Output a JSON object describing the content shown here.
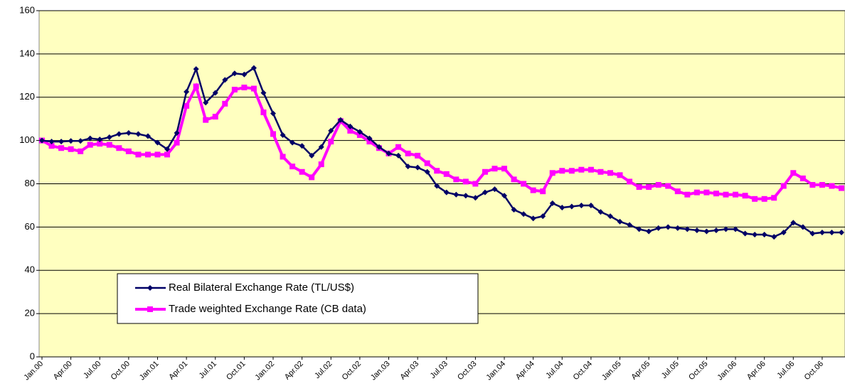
{
  "chart_data": {
    "type": "line",
    "categories": [
      "Jan.00",
      null,
      null,
      "Apr.00",
      null,
      null,
      "Jul.00",
      null,
      null,
      "Oct.00",
      null,
      null,
      "Jan.01",
      null,
      null,
      "Apr.01",
      null,
      null,
      "Jul.01",
      null,
      null,
      "Oct.01",
      null,
      null,
      "Jan.02",
      null,
      null,
      "Apr.02",
      null,
      null,
      "Jul.02",
      null,
      null,
      "Oct.02",
      null,
      null,
      "Jan.03",
      null,
      null,
      "Apr.03",
      null,
      null,
      "Jul.03",
      null,
      null,
      "Oct.03",
      null,
      null,
      "Jan.04",
      null,
      null,
      "Apr.04",
      null,
      null,
      "Jul.04",
      null,
      null,
      "Oct.04",
      null,
      null,
      "Jan.05",
      null,
      null,
      "Apr.05",
      null,
      null,
      "Jul.05",
      null,
      null,
      "Oct.05",
      null,
      null,
      "Jan.06",
      null,
      null,
      "Apr.06",
      null,
      null,
      "Jul.06",
      null,
      null,
      "Oct.06",
      null,
      null
    ],
    "series": [
      {
        "name": "Real Bilateral Exchange Rate (TL/US$)",
        "color": "#000066",
        "marker": "diamond",
        "values": [
          100,
          99.5,
          99.5,
          99.8,
          99.8,
          101,
          100.5,
          101.5,
          103,
          103.5,
          103,
          102,
          99,
          96,
          103.5,
          122.5,
          133,
          117.5,
          122,
          128,
          131,
          130.5,
          133.5,
          122,
          112.5,
          102.5,
          99,
          97.5,
          93,
          97,
          104.5,
          109.5,
          106.5,
          104,
          101,
          97,
          94,
          93,
          88,
          87.5,
          85.5,
          79,
          76,
          75,
          74.5,
          73.5,
          76,
          77.5,
          74.5,
          68,
          66,
          64,
          65,
          71,
          69,
          69.5,
          70,
          70,
          67,
          65,
          62.5,
          61,
          59,
          58,
          59.5,
          60,
          59.5,
          59,
          58.5,
          58,
          58.5,
          59,
          59,
          57,
          56.5,
          56.5,
          55.5,
          57.5,
          62,
          60,
          57,
          57.5,
          57.5,
          57.5
        ]
      },
      {
        "name": "Trade weighted Exchange Rate (CB data)",
        "color": "#ff00ff",
        "marker": "square",
        "values": [
          100,
          97.5,
          96.5,
          96,
          95,
          98,
          98.5,
          98,
          96.5,
          95,
          93.5,
          93.5,
          93.5,
          93.5,
          99,
          116,
          125,
          109.5,
          111,
          117,
          123.5,
          124.5,
          124,
          113,
          103,
          92.5,
          88,
          85.5,
          83,
          89,
          99.5,
          109,
          104.5,
          102.5,
          99.5,
          96.5,
          94,
          97,
          94,
          93,
          89.5,
          86,
          84.5,
          82,
          81,
          80,
          85.5,
          87,
          87,
          82,
          80,
          77,
          76.5,
          85,
          86,
          86,
          86.5,
          86.5,
          85.5,
          85,
          84,
          81,
          78.5,
          78.5,
          79.5,
          79,
          76.5,
          75,
          76,
          76,
          75.5,
          75,
          75,
          74.5,
          73,
          73,
          73.5,
          79,
          85,
          82.5,
          79.5,
          79.5,
          79,
          78
        ]
      }
    ],
    "ylim": [
      0,
      160
    ],
    "yticks": [
      0,
      20,
      40,
      60,
      80,
      100,
      120,
      140,
      160
    ],
    "grid": true,
    "background": "#ffffc0",
    "legend": "bottom-left"
  }
}
